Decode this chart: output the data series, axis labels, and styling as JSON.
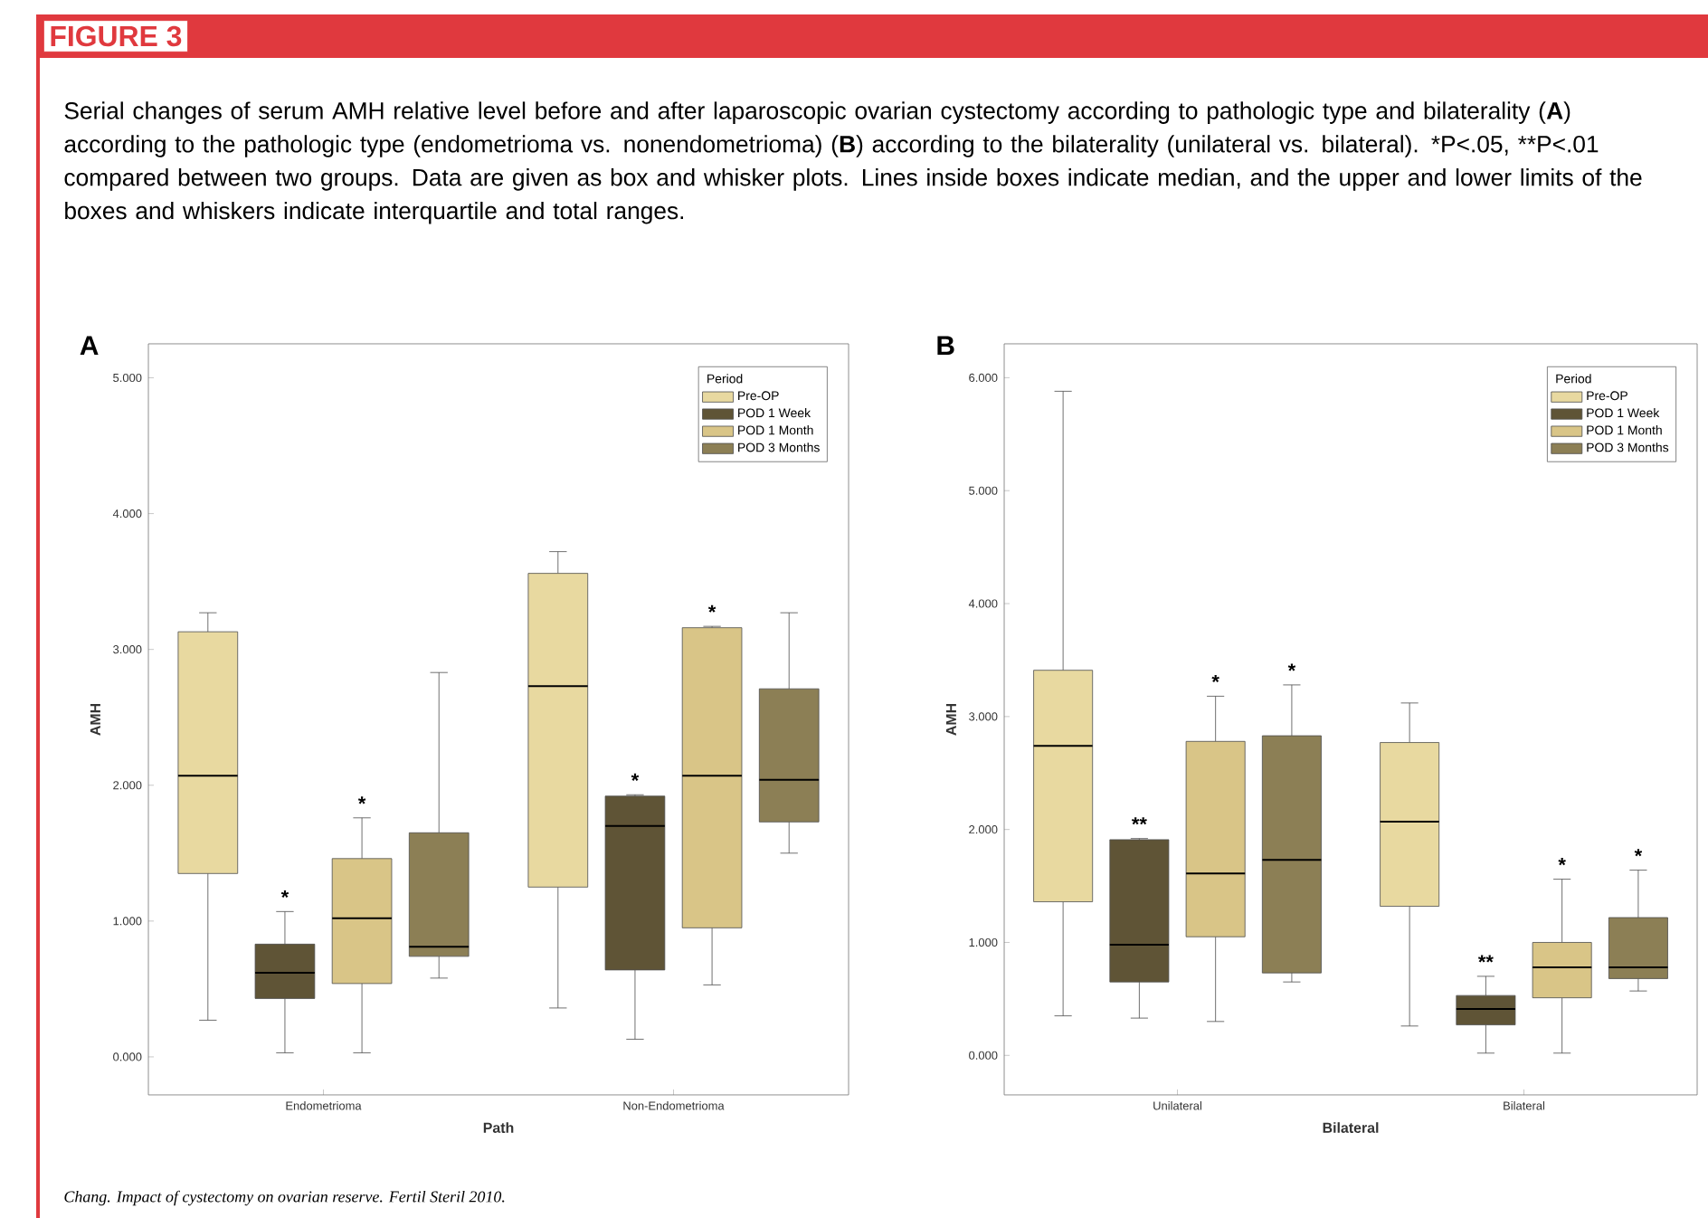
{
  "chart_data": [
    {
      "type": "box",
      "title": "A",
      "xlabel": "Path",
      "ylabel": "AMH",
      "legend_title": "Period",
      "legend": "top right",
      "grid": false,
      "annotations": [
        "FIGURE 3",
        "Serial changes of serum AMH relative level before and after laparoscopic ovarian cystectomy according to pathologic type and bilaterality (**A**) according to the pathologic type (endometrioma vs. nonendometrioma) (**B**) according to the bilaterality (unilateral vs. bilateral). *P<.05, **P<.01 compared between two groups. Data are given as box and whisker plots. Lines inside boxes indicate median, and the upper and lower limits of the boxes and whiskers indicate interquartile and total ranges.",
        "Chang. Impact of cystectomy on ovarian reserve. Fertil Steril 2010."
      ],
      "categories": [
        "Endometrioma",
        "Non-Endometrioma"
      ],
      "ylim": [
        -0.28,
        5.25
      ],
      "yticks": [
        {
          "value": 0,
          "label": "0.000"
        },
        {
          "value": 1,
          "label": "1.000"
        },
        {
          "value": 2,
          "label": "2.000"
        },
        {
          "value": 3,
          "label": "3.000"
        },
        {
          "value": 4,
          "label": "4.000"
        },
        {
          "value": 5,
          "label": "5.000"
        }
      ],
      "series": [
        {
          "name": "Pre-OP",
          "color": "#e8d9a0",
          "boxes": [
            {
              "low": 0.27,
              "q1": 1.35,
              "median": 2.07,
              "q3": 3.13,
              "high": 3.27
            },
            {
              "low": 0.36,
              "q1": 1.25,
              "median": 2.73,
              "q3": 3.56,
              "high": 3.72
            }
          ]
        },
        {
          "name": "POD 1 Week",
          "color": "#5f5436",
          "boxes": [
            {
              "low": 0.03,
              "q1": 0.43,
              "median": 0.62,
              "q3": 0.83,
              "high": 1.07
            },
            {
              "low": 0.13,
              "q1": 0.64,
              "median": 1.7,
              "q3": 1.92,
              "high": 1.93
            }
          ],
          "value_labels": [
            "*",
            "*"
          ]
        },
        {
          "name": "POD 1 Month",
          "color": "#d9c587",
          "boxes": [
            {
              "low": 0.03,
              "q1": 0.54,
              "median": 1.02,
              "q3": 1.46,
              "high": 1.76
            },
            {
              "low": 0.53,
              "q1": 0.95,
              "median": 2.07,
              "q3": 3.16,
              "high": 3.17
            }
          ],
          "value_labels": [
            "*",
            "*"
          ]
        },
        {
          "name": "POD 3 Months",
          "color": "#8c7f55",
          "boxes": [
            {
              "low": 0.58,
              "q1": 0.74,
              "median": 0.81,
              "q3": 1.65,
              "high": 2.83
            },
            {
              "low": 1.5,
              "q1": 1.73,
              "median": 2.04,
              "q3": 2.71,
              "high": 3.27
            }
          ]
        }
      ]
    },
    {
      "type": "box",
      "title": "B",
      "xlabel": "Bilateral",
      "ylabel": "AMH",
      "legend_title": "Period",
      "legend": "top right",
      "grid": false,
      "categories": [
        "Unilateral",
        "Bilateral"
      ],
      "ylim": [
        -0.35,
        6.3
      ],
      "yticks": [
        {
          "value": 0,
          "label": "0.000"
        },
        {
          "value": 1,
          "label": "1.000"
        },
        {
          "value": 2,
          "label": "2.000"
        },
        {
          "value": 3,
          "label": "3.000"
        },
        {
          "value": 4,
          "label": "4.000"
        },
        {
          "value": 5,
          "label": "5.000"
        },
        {
          "value": 6,
          "label": "6.000"
        }
      ],
      "series": [
        {
          "name": "Pre-OP",
          "color": "#e8d9a0",
          "boxes": [
            {
              "low": 0.35,
              "q1": 1.36,
              "median": 2.74,
              "q3": 3.41,
              "high": 5.88
            },
            {
              "low": 0.26,
              "q1": 1.32,
              "median": 2.07,
              "q3": 2.77,
              "high": 3.12
            }
          ]
        },
        {
          "name": "POD 1 Week",
          "color": "#5f5436",
          "boxes": [
            {
              "low": 0.33,
              "q1": 0.65,
              "median": 0.98,
              "q3": 1.91,
              "high": 1.92
            },
            {
              "low": 0.02,
              "q1": 0.27,
              "median": 0.41,
              "q3": 0.53,
              "high": 0.7
            }
          ],
          "value_labels": [
            "**",
            "**"
          ]
        },
        {
          "name": "POD 1 Month",
          "color": "#d9c587",
          "boxes": [
            {
              "low": 0.3,
              "q1": 1.05,
              "median": 1.61,
              "q3": 2.78,
              "high": 3.18
            },
            {
              "low": 0.02,
              "q1": 0.51,
              "median": 0.78,
              "q3": 1.0,
              "high": 1.56
            }
          ],
          "value_labels": [
            "*",
            "*"
          ]
        },
        {
          "name": "POD 3 Months",
          "color": "#8c7f55",
          "boxes": [
            {
              "low": 0.65,
              "q1": 0.73,
              "median": 1.73,
              "q3": 2.83,
              "high": 3.28
            },
            {
              "low": 0.57,
              "q1": 0.68,
              "median": 0.78,
              "q3": 1.22,
              "high": 1.64
            }
          ],
          "value_labels": [
            "*",
            "*"
          ]
        }
      ]
    }
  ]
}
